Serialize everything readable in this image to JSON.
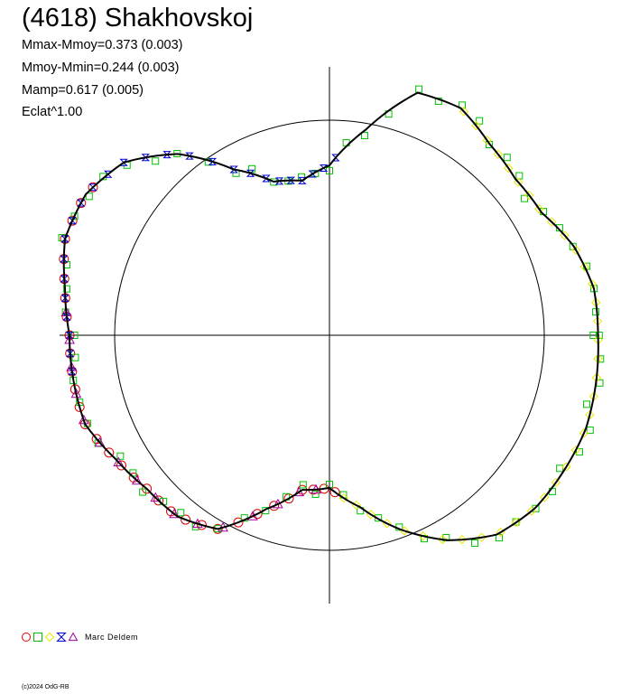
{
  "header": {
    "title": "(4618) Shakhovskoj",
    "stats": [
      "Mmax-Mmoy=0.373 (0.003)",
      "Mmoy-Mmin=0.244 (0.003)",
      "Mamp=0.617 (0.005)",
      "Eclat^1.00"
    ]
  },
  "legend": {
    "markers": [
      {
        "shape": "circle",
        "color": "#e00000"
      },
      {
        "shape": "square",
        "color": "#00c000"
      },
      {
        "shape": "diamond",
        "color": "#e8e800"
      },
      {
        "shape": "bowtie",
        "color": "#0000d0"
      },
      {
        "shape": "triangle",
        "color": "#a000a0"
      }
    ],
    "author": "Marc Deldem"
  },
  "footer": {
    "copyright": "(c)2024 OdG-RB"
  },
  "chart_data": {
    "type": "polar-lightcurve",
    "reference_circle_radius": 1.0,
    "range": [
      -1.28,
      1.28
    ],
    "curve": {
      "color": "#000000",
      "points": [
        [
          0,
          1.25
        ],
        [
          10,
          1.25
        ],
        [
          20,
          1.21
        ],
        [
          30,
          1.14
        ],
        [
          40,
          1.13
        ],
        [
          50,
          1.16
        ],
        [
          60,
          1.22
        ],
        [
          70,
          1.2
        ],
        [
          80,
          0.97
        ],
        [
          90,
          0.79
        ],
        [
          100,
          0.73
        ],
        [
          110,
          0.76
        ],
        [
          120,
          0.89
        ],
        [
          130,
          1.1
        ],
        [
          140,
          1.25
        ],
        [
          150,
          1.31
        ],
        [
          160,
          1.31
        ],
        [
          170,
          1.25
        ],
        [
          180,
          1.21
        ],
        [
          190,
          1.21
        ],
        [
          200,
          1.21
        ],
        [
          210,
          1.15
        ],
        [
          220,
          1.11
        ],
        [
          230,
          1.1
        ],
        [
          240,
          1.04
        ],
        [
          250,
          0.86
        ],
        [
          260,
          0.73
        ],
        [
          270,
          0.71
        ],
        [
          280,
          0.81
        ],
        [
          290,
          0.96
        ],
        [
          300,
          1.1
        ],
        [
          310,
          1.21
        ],
        [
          320,
          1.25
        ],
        [
          330,
          1.26
        ],
        [
          340,
          1.27
        ],
        [
          350,
          1.26
        ]
      ]
    },
    "series": [
      {
        "marker": "circle",
        "color": "#e00000",
        "phase_start": 148,
        "phase_end": 275
      },
      {
        "marker": "square",
        "color": "#00c000",
        "phase_start": 0,
        "phase_end": 360
      },
      {
        "marker": "diamond",
        "color": "#e8e800",
        "phase_start": 275,
        "phase_end": 420
      },
      {
        "marker": "bowtie",
        "color": "#0000d0",
        "phase_start": 88,
        "phase_end": 190
      },
      {
        "marker": "triangle",
        "color": "#a000a0",
        "phase_start": 175,
        "phase_end": 265
      }
    ]
  }
}
